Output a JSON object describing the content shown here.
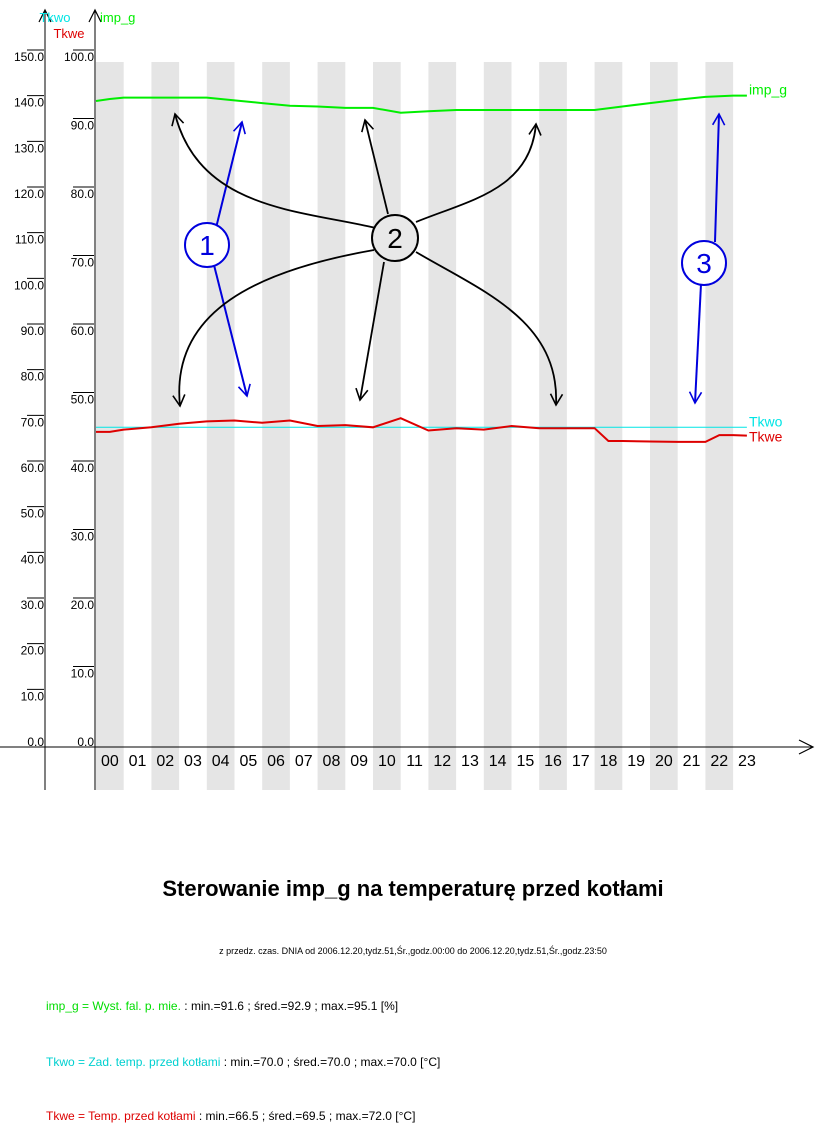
{
  "chart_data": {
    "type": "line",
    "title": "Sterowanie imp_g na temperaturę przed kotłami",
    "subtitle": "z przedz. czas. DNIA od 2006.12.20,tydz.51,Śr.,godz.00:00 do 2006.12.20,tydz.51,Śr.,godz.23:50",
    "x": {
      "categories": [
        "00",
        "01",
        "02",
        "03",
        "04",
        "05",
        "06",
        "07",
        "08",
        "09",
        "10",
        "11",
        "12",
        "13",
        "14",
        "15",
        "16",
        "17",
        "18",
        "19",
        "20",
        "21",
        "22",
        "23"
      ]
    },
    "axes": [
      {
        "id": "temp",
        "labels": [
          "Tkwo",
          "Tkwe"
        ],
        "ylim": [
          0,
          150
        ],
        "ticks": [
          "0.0",
          "10.0",
          "20.0",
          "30.0",
          "40.0",
          "50.0",
          "60.0",
          "70.0",
          "80.0",
          "90.0",
          "100.0",
          "110.0",
          "120.0",
          "130.0",
          "140.0",
          "150.0"
        ]
      },
      {
        "id": "pct",
        "labels": [
          "imp_g"
        ],
        "ylim": [
          0,
          100
        ],
        "ticks": [
          "0.0",
          "10.0",
          "20.0",
          "30.0",
          "40.0",
          "50.0",
          "60.0",
          "70.0",
          "80.0",
          "90.0",
          "100.0"
        ]
      }
    ],
    "series": [
      {
        "name": "imp_g",
        "axis": "pct",
        "color": "#00ee00",
        "x": [
          0,
          0.5,
          1,
          2,
          3,
          4,
          5,
          6,
          7,
          8,
          9,
          10,
          11,
          12,
          13,
          14,
          15,
          16,
          17,
          18,
          19,
          20,
          21,
          22,
          23,
          23.5
        ],
        "y": [
          94.3,
          94.6,
          94.8,
          94.8,
          94.8,
          94.8,
          94.4,
          94.0,
          93.6,
          93.5,
          93.3,
          93.3,
          92.6,
          92.8,
          93.0,
          93.0,
          93.0,
          93.0,
          93.0,
          93.0,
          93.5,
          94.0,
          94.5,
          94.9,
          95.1,
          95.1
        ]
      },
      {
        "name": "Tkwo",
        "axis": "temp",
        "color": "#00e5e5",
        "x": [
          0,
          23.5
        ],
        "y": [
          70.0,
          70.0
        ]
      },
      {
        "name": "Tkwe",
        "axis": "temp",
        "color": "#dd0000",
        "x": [
          0,
          0.5,
          1,
          2,
          3,
          4,
          5,
          6,
          7,
          8,
          9,
          10,
          11,
          12,
          13,
          14,
          15,
          16,
          17,
          18,
          18.5,
          19,
          20,
          21,
          22,
          22.5,
          23,
          23.5
        ],
        "y": [
          69.0,
          69.0,
          69.5,
          70.0,
          70.8,
          71.3,
          71.5,
          71.0,
          71.5,
          70.3,
          70.5,
          70.0,
          72.0,
          69.3,
          69.8,
          69.5,
          70.3,
          69.8,
          69.8,
          69.8,
          67.0,
          67.0,
          66.9,
          66.8,
          66.8,
          68.3,
          68.3,
          68.2
        ]
      }
    ],
    "annotations": [
      {
        "label": "1",
        "color": "#0000dd"
      },
      {
        "label": "2",
        "color": "#000000"
      },
      {
        "label": "3",
        "color": "#0000dd"
      }
    ],
    "grid": "alternating vertical stripes"
  },
  "colors": {
    "imp_g": "#00ee00",
    "Tkwo": "#00e5e5",
    "Tkwe": "#dd0000",
    "stripe": "#e5e5e5",
    "annotation_blue": "#0000dd",
    "annotation_black": "#000000"
  },
  "footer": {
    "title": "Sterowanie imp_g na temperaturę przed kotłami",
    "subtitle": "z przedz. czas. DNIA od 2006.12.20,tydz.51,Śr.,godz.00:00 do 2006.12.20,tydz.51,Śr.,godz.23:50",
    "legend": [
      {
        "prefix": "imp_g = Wyst. fal. p. mie. ",
        "stats": ": min.=91.6 ; śred.=92.9 ; max.=95.1 [%]",
        "color": "#00dd00"
      },
      {
        "prefix": "Tkwo = Zad. temp. przed kotłami ",
        "stats": ": min.=70.0 ; śred.=70.0 ; max.=70.0 [°C]",
        "color": "#00d0d0"
      },
      {
        "prefix": "Tkwe = Temp. przed kotłami ",
        "stats": ": min.=66.5 ; śred.=69.5 ; max.=72.0 [°C]",
        "color": "#dd0000"
      }
    ]
  }
}
